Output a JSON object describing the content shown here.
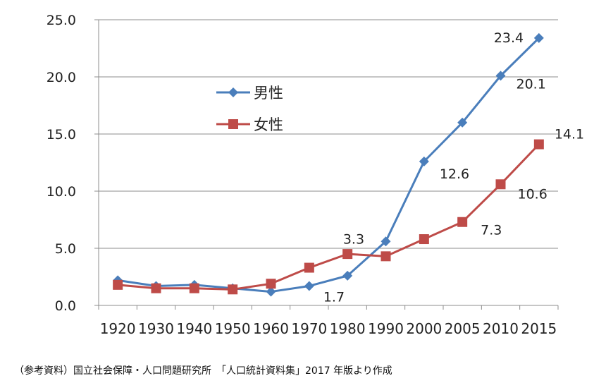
{
  "chart_data": {
    "type": "line",
    "categories": [
      "1920",
      "1930",
      "1940",
      "1950",
      "1960",
      "1970",
      "1980",
      "1990",
      "2000",
      "2005",
      "2010",
      "2015"
    ],
    "ylim": [
      0,
      25
    ],
    "yticks": [
      "0.0",
      "5.0",
      "10.0",
      "15.0",
      "20.0",
      "25.0"
    ],
    "grid": true,
    "legend_position": "upper-left inside plot",
    "series": [
      {
        "name": "男性",
        "color": "#4a7ebb",
        "marker": "diamond",
        "values": [
          2.2,
          1.7,
          1.8,
          1.5,
          1.2,
          1.7,
          2.6,
          5.6,
          12.6,
          16.0,
          20.1,
          23.4
        ]
      },
      {
        "name": "女性",
        "color": "#be4b48",
        "marker": "square",
        "values": [
          1.8,
          1.5,
          1.5,
          1.4,
          1.9,
          3.3,
          4.5,
          4.3,
          5.8,
          7.3,
          10.6,
          14.1
        ]
      }
    ],
    "data_labels": [
      {
        "series": 0,
        "index": 5,
        "text": "1.7"
      },
      {
        "series": 0,
        "index": 8,
        "text": "12.6"
      },
      {
        "series": 0,
        "index": 10,
        "text": "20.1"
      },
      {
        "series": 0,
        "index": 11,
        "text": "23.4"
      },
      {
        "series": 1,
        "index": 5,
        "text": "3.3"
      },
      {
        "series": 1,
        "index": 9,
        "text": "7.3"
      },
      {
        "series": 1,
        "index": 10,
        "text": "10.6"
      },
      {
        "series": 1,
        "index": 11,
        "text": "14.1"
      }
    ]
  },
  "source_note": "（参考資料）国立社会保障・人口問題研究所　「人口統計資料集」2017 年版より作成"
}
